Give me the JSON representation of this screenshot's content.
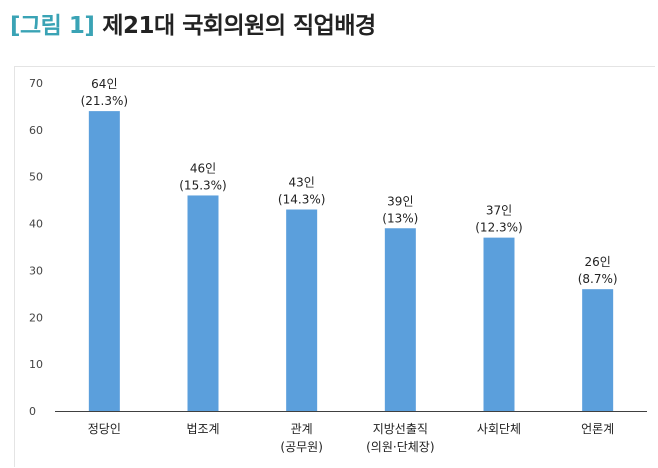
{
  "figure": {
    "tag": "[그림 1]",
    "title": "제21대 국회의원의 직업배경"
  },
  "colors": {
    "bar": "#5b9fdc",
    "tag": "#3aa3b5",
    "axis": "#404040"
  },
  "chart_data": {
    "type": "bar",
    "title": "",
    "xlabel": "",
    "ylabel": "",
    "ylim": [
      0,
      70
    ],
    "yticks": [
      "0",
      "10",
      "20",
      "30",
      "40",
      "50",
      "60",
      "70"
    ],
    "grid": false,
    "categories": [
      [
        "정당인"
      ],
      [
        "법조계"
      ],
      [
        "관계",
        "(공무원)"
      ],
      [
        "지방선출직",
        "(의원·단체장)"
      ],
      [
        "사회단체"
      ],
      [
        "언론계"
      ]
    ],
    "values": [
      64,
      46,
      43,
      39,
      37,
      26
    ],
    "data_labels": [
      [
        "64인",
        "(21.3%)"
      ],
      [
        "46인",
        "(15.3%)"
      ],
      [
        "43인",
        "(14.3%)"
      ],
      [
        "39인",
        "(13%)"
      ],
      [
        "37인",
        "(12.3%)"
      ],
      [
        "26인",
        "(8.7%)"
      ]
    ]
  }
}
